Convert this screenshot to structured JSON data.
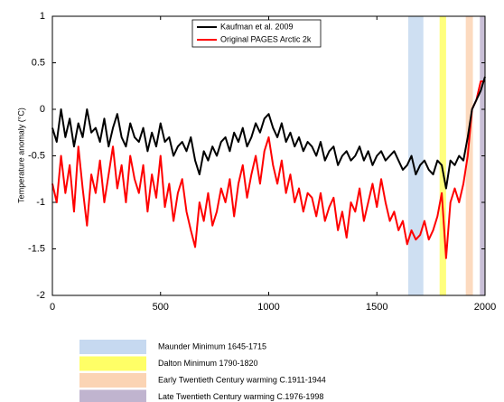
{
  "chart_data": {
    "type": "line",
    "ylabel": "Temperature anomaly (°C)",
    "xlim": [
      0,
      2000
    ],
    "xticks": [
      0,
      500,
      1000,
      1500,
      2000
    ],
    "ylim": [
      -2,
      1
    ],
    "yticks": [
      1,
      0.5,
      0,
      -0.5,
      -1,
      -1.5,
      -2
    ],
    "legend": "top",
    "x": [
      0,
      20,
      40,
      60,
      80,
      100,
      120,
      140,
      160,
      180,
      200,
      220,
      240,
      260,
      280,
      300,
      320,
      340,
      360,
      380,
      400,
      420,
      440,
      460,
      480,
      500,
      520,
      540,
      560,
      580,
      600,
      620,
      640,
      660,
      680,
      700,
      720,
      740,
      760,
      780,
      800,
      820,
      840,
      860,
      880,
      900,
      920,
      940,
      960,
      980,
      1000,
      1020,
      1040,
      1060,
      1080,
      1100,
      1120,
      1140,
      1160,
      1180,
      1200,
      1220,
      1240,
      1260,
      1280,
      1300,
      1320,
      1340,
      1360,
      1380,
      1400,
      1420,
      1440,
      1460,
      1480,
      1500,
      1520,
      1540,
      1560,
      1580,
      1600,
      1620,
      1640,
      1660,
      1680,
      1700,
      1720,
      1740,
      1760,
      1780,
      1800,
      1820,
      1840,
      1860,
      1880,
      1900,
      1920,
      1940,
      1960,
      1980,
      2000
    ],
    "series": [
      {
        "name": "Kaufman et al. 2009",
        "color": "#000000",
        "values": [
          -0.2,
          -0.35,
          0.0,
          -0.3,
          -0.1,
          -0.4,
          -0.15,
          -0.3,
          0.0,
          -0.25,
          -0.2,
          -0.35,
          -0.1,
          -0.4,
          -0.2,
          -0.05,
          -0.3,
          -0.4,
          -0.15,
          -0.3,
          -0.35,
          -0.2,
          -0.45,
          -0.25,
          -0.4,
          -0.15,
          -0.35,
          -0.3,
          -0.5,
          -0.4,
          -0.35,
          -0.45,
          -0.3,
          -0.55,
          -0.7,
          -0.45,
          -0.55,
          -0.4,
          -0.5,
          -0.35,
          -0.3,
          -0.45,
          -0.25,
          -0.35,
          -0.2,
          -0.4,
          -0.3,
          -0.15,
          -0.25,
          -0.1,
          -0.05,
          -0.2,
          -0.3,
          -0.15,
          -0.35,
          -0.25,
          -0.4,
          -0.3,
          -0.45,
          -0.35,
          -0.4,
          -0.5,
          -0.35,
          -0.55,
          -0.45,
          -0.4,
          -0.6,
          -0.5,
          -0.45,
          -0.55,
          -0.5,
          -0.4,
          -0.55,
          -0.45,
          -0.6,
          -0.5,
          -0.45,
          -0.55,
          -0.5,
          -0.45,
          -0.55,
          -0.65,
          -0.6,
          -0.5,
          -0.7,
          -0.6,
          -0.55,
          -0.65,
          -0.7,
          -0.55,
          -0.6,
          -0.85,
          -0.55,
          -0.6,
          -0.5,
          -0.55,
          -0.3,
          0.0,
          0.1,
          0.2,
          0.35
        ]
      },
      {
        "name": "Original PAGES Arctic 2k",
        "color": "#ff0000",
        "values": [
          -0.8,
          -1.0,
          -0.5,
          -0.9,
          -0.6,
          -1.1,
          -0.4,
          -0.85,
          -1.25,
          -0.7,
          -0.9,
          -0.55,
          -1.0,
          -0.7,
          -0.4,
          -0.85,
          -0.6,
          -1.0,
          -0.5,
          -0.75,
          -0.9,
          -0.6,
          -1.1,
          -0.7,
          -0.95,
          -0.5,
          -1.05,
          -0.8,
          -1.2,
          -0.9,
          -0.75,
          -1.1,
          -1.3,
          -1.48,
          -1.0,
          -1.2,
          -0.9,
          -1.25,
          -1.1,
          -0.85,
          -1.0,
          -0.75,
          -1.15,
          -0.8,
          -0.6,
          -0.95,
          -0.7,
          -0.5,
          -0.8,
          -0.45,
          -0.3,
          -0.6,
          -0.8,
          -0.55,
          -0.9,
          -0.7,
          -1.0,
          -0.85,
          -1.1,
          -0.9,
          -0.95,
          -1.15,
          -0.9,
          -1.2,
          -1.05,
          -0.95,
          -1.3,
          -1.1,
          -1.38,
          -1.0,
          -1.1,
          -0.85,
          -1.2,
          -1.0,
          -0.8,
          -1.05,
          -0.75,
          -1.0,
          -1.2,
          -1.1,
          -1.3,
          -1.2,
          -1.45,
          -1.3,
          -1.4,
          -1.35,
          -1.2,
          -1.4,
          -1.3,
          -1.15,
          -0.9,
          -1.6,
          -1.0,
          -0.85,
          -1.0,
          -0.8,
          -0.5,
          0.0,
          0.1,
          0.3,
          0.3
        ]
      }
    ],
    "bands": [
      {
        "label": "Maunder Minimum 1645-1715",
        "start": 1645,
        "end": 1715,
        "color": "#c6d9f0"
      },
      {
        "label": "Dalton Minimum 1790-1820",
        "start": 1790,
        "end": 1820,
        "color": "#ffff66"
      },
      {
        "label": "Early Twentieth Century warming C.1911-1944",
        "start": 1911,
        "end": 1944,
        "color": "#fbd4b4"
      },
      {
        "label": "Late Twentieth Century warming C.1976-1998",
        "start": 1976,
        "end": 1998,
        "color": "#c0b4cf"
      }
    ]
  }
}
